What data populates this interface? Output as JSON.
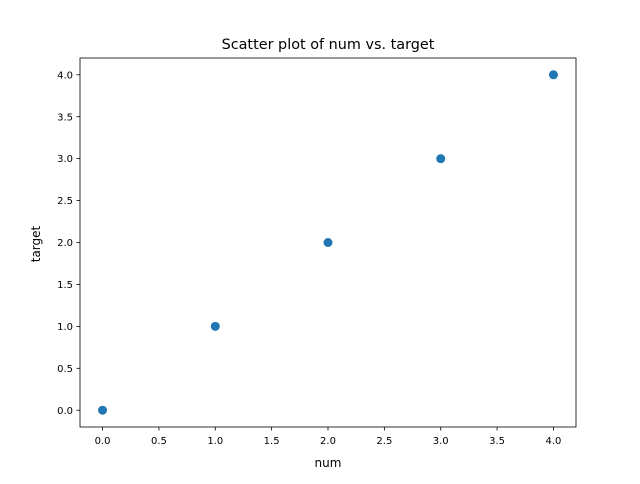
{
  "chart_data": {
    "type": "scatter",
    "title": "Scatter plot of num vs. target",
    "xlabel": "num",
    "ylabel": "target",
    "xlim": [
      -0.2,
      4.2
    ],
    "ylim": [
      -0.2,
      4.2
    ],
    "xticks": [
      0.0,
      0.5,
      1.0,
      1.5,
      2.0,
      2.5,
      3.0,
      3.5,
      4.0
    ],
    "xtick_labels": [
      "0.0",
      "0.5",
      "1.0",
      "1.5",
      "2.0",
      "2.5",
      "3.0",
      "3.5",
      "4.0"
    ],
    "yticks": [
      0.0,
      0.5,
      1.0,
      1.5,
      2.0,
      2.5,
      3.0,
      3.5,
      4.0
    ],
    "ytick_labels": [
      "0.0",
      "0.5",
      "1.0",
      "1.5",
      "2.0",
      "2.5",
      "3.0",
      "3.5",
      "4.0"
    ],
    "grid": false,
    "legend": "none",
    "marker_color": "#1f77b4",
    "series": [
      {
        "x": [
          0,
          1,
          2,
          3,
          4
        ],
        "y": [
          0,
          1,
          2,
          3,
          4
        ]
      }
    ]
  }
}
